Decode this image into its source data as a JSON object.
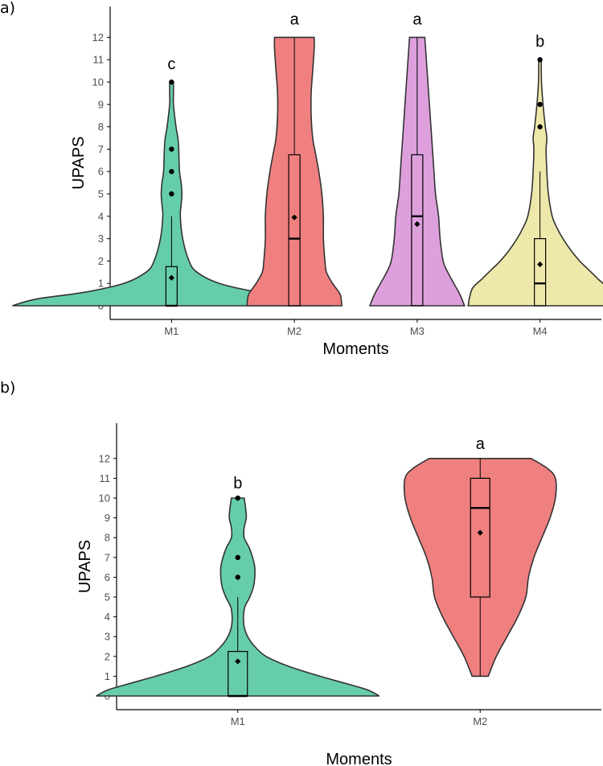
{
  "panels": [
    {
      "label": "a)"
    },
    {
      "label": "b)"
    }
  ],
  "chart_data": [
    {
      "type": "violin",
      "xlabel": "Moments",
      "ylabel": "UPAPS",
      "ylim": [
        -0.5,
        13
      ],
      "yticks": [
        0,
        1,
        2,
        3,
        4,
        5,
        6,
        7,
        8,
        9,
        10,
        11,
        12
      ],
      "grid": false,
      "categories": [
        "M1",
        "M2",
        "M3",
        "M4"
      ],
      "groups": [
        {
          "name": "M1",
          "color": "#66CDAA",
          "letter": "c",
          "box": {
            "q1": 0,
            "median": 0,
            "q3": 1.75,
            "whisker_low": 0,
            "whisker_high": 4
          },
          "mean": 1.25,
          "outliers": [
            5,
            6,
            7,
            10
          ],
          "density": [
            [
              0,
              1.0
            ],
            [
              0.3,
              0.85
            ],
            [
              0.6,
              0.55
            ],
            [
              1,
              0.3
            ],
            [
              1.5,
              0.16
            ],
            [
              2,
              0.11
            ],
            [
              3,
              0.07
            ],
            [
              4,
              0.055
            ],
            [
              4.5,
              0.06
            ],
            [
              5,
              0.065
            ],
            [
              5.5,
              0.06
            ],
            [
              6,
              0.05
            ],
            [
              7,
              0.045
            ],
            [
              7.5,
              0.04
            ],
            [
              8,
              0.028
            ],
            [
              9,
              0.012
            ],
            [
              9.5,
              0.012
            ],
            [
              10,
              0.012
            ]
          ]
        },
        {
          "name": "M2",
          "color": "#F08080",
          "letter": "a",
          "box": {
            "q1": 0,
            "median": 3,
            "q3": 6.75,
            "whisker_low": 0,
            "whisker_high": 12
          },
          "mean": 3.95,
          "outliers": [],
          "density": [
            [
              0,
              0.31
            ],
            [
              0.5,
              0.3
            ],
            [
              1,
              0.25
            ],
            [
              1.5,
              0.21
            ],
            [
              2,
              0.2
            ],
            [
              3,
              0.19
            ],
            [
              4,
              0.19
            ],
            [
              5,
              0.18
            ],
            [
              6,
              0.16
            ],
            [
              6.75,
              0.14
            ],
            [
              7.5,
              0.12
            ],
            [
              8.5,
              0.11
            ],
            [
              9.5,
              0.11
            ],
            [
              10.5,
              0.12
            ],
            [
              11.5,
              0.13
            ],
            [
              12,
              0.13
            ]
          ]
        },
        {
          "name": "M3",
          "color": "#DDA0DD",
          "letter": "a",
          "box": {
            "q1": 0,
            "median": 4,
            "q3": 6.75,
            "whisker_low": 0,
            "whisker_high": 12
          },
          "mean": 3.65,
          "outliers": [],
          "density": [
            [
              0,
              0.31
            ],
            [
              0.5,
              0.28
            ],
            [
              1,
              0.24
            ],
            [
              1.5,
              0.2
            ],
            [
              2,
              0.17
            ],
            [
              3,
              0.15
            ],
            [
              4,
              0.14
            ],
            [
              5,
              0.12
            ],
            [
              6,
              0.11
            ],
            [
              7,
              0.1
            ],
            [
              8,
              0.09
            ],
            [
              9,
              0.08
            ],
            [
              10,
              0.07
            ],
            [
              11,
              0.06
            ],
            [
              12,
              0.05
            ]
          ]
        },
        {
          "name": "M4",
          "color": "#EEE8AA",
          "letter": "b",
          "box": {
            "q1": 0,
            "median": 1,
            "q3": 3,
            "whisker_low": 0,
            "whisker_high": 6
          },
          "mean": 1.85,
          "outliers": [
            8,
            9,
            11
          ],
          "density": [
            [
              0,
              0.47
            ],
            [
              0.4,
              0.46
            ],
            [
              0.8,
              0.44
            ],
            [
              1.2,
              0.38
            ],
            [
              1.6,
              0.32
            ],
            [
              2,
              0.26
            ],
            [
              2.5,
              0.2
            ],
            [
              3,
              0.15
            ],
            [
              3.5,
              0.11
            ],
            [
              4,
              0.08
            ],
            [
              5,
              0.055
            ],
            [
              6,
              0.045
            ],
            [
              7,
              0.04
            ],
            [
              7.5,
              0.045
            ],
            [
              8,
              0.035
            ],
            [
              9,
              0.02
            ],
            [
              10,
              0.01
            ],
            [
              11,
              0.008
            ]
          ]
        }
      ]
    },
    {
      "type": "violin",
      "xlabel": "Moments",
      "ylabel": "UPAPS",
      "ylim": [
        -0.5,
        13
      ],
      "yticks": [
        0,
        1,
        2,
        3,
        4,
        5,
        6,
        7,
        8,
        9,
        10,
        11,
        12
      ],
      "grid": false,
      "categories": [
        "M1",
        "M2"
      ],
      "groups": [
        {
          "name": "M1",
          "color": "#66CDAA",
          "letter": "b",
          "box": {
            "q1": 0,
            "median": 0,
            "q3": 2.25,
            "whisker_low": 0,
            "whisker_high": 5
          },
          "mean": 1.75,
          "outliers": [
            6,
            7,
            10
          ],
          "density": [
            [
              0,
              1.0
            ],
            [
              0.3,
              0.92
            ],
            [
              0.6,
              0.78
            ],
            [
              1,
              0.58
            ],
            [
              1.5,
              0.36
            ],
            [
              2,
              0.2
            ],
            [
              2.5,
              0.12
            ],
            [
              3,
              0.07
            ],
            [
              3.5,
              0.045
            ],
            [
              4,
              0.04
            ],
            [
              4.5,
              0.05
            ],
            [
              5,
              0.085
            ],
            [
              5.5,
              0.11
            ],
            [
              6,
              0.12
            ],
            [
              6.5,
              0.12
            ],
            [
              7,
              0.105
            ],
            [
              7.5,
              0.08
            ],
            [
              8,
              0.045
            ],
            [
              8.5,
              0.045
            ],
            [
              9,
              0.06
            ],
            [
              9.5,
              0.055
            ],
            [
              10,
              0.045
            ]
          ]
        },
        {
          "name": "M2",
          "color": "#F08080",
          "letter": "a",
          "box": {
            "q1": 5,
            "median": 9.5,
            "q3": 11,
            "whisker_low": 1,
            "whisker_high": 12
          },
          "mean": 8.25,
          "outliers": [],
          "density": [
            [
              1,
              0.03
            ],
            [
              2,
              0.06
            ],
            [
              3,
              0.1
            ],
            [
              4,
              0.14
            ],
            [
              5,
              0.17
            ],
            [
              6,
              0.18
            ],
            [
              7,
              0.2
            ],
            [
              8,
              0.23
            ],
            [
              9,
              0.26
            ],
            [
              10,
              0.28
            ],
            [
              11,
              0.28
            ],
            [
              11.5,
              0.25
            ],
            [
              12,
              0.19
            ]
          ]
        }
      ]
    }
  ]
}
